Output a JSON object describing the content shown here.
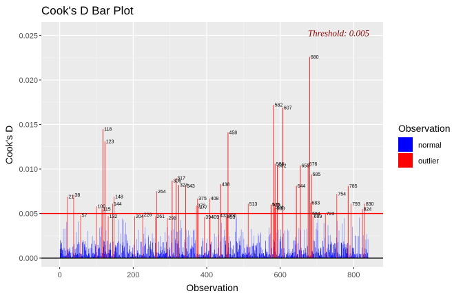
{
  "chart_data": {
    "type": "bar",
    "title": "Cook's D Bar Plot",
    "xlabel": "Observation",
    "ylabel": "Cook's D",
    "xlim": [
      -50,
      880
    ],
    "ylim": [
      -0.001,
      0.0265
    ],
    "x_ticks": [
      0,
      200,
      400,
      600,
      800
    ],
    "y_ticks": [
      0.0,
      0.005,
      0.01,
      0.015,
      0.02,
      0.025
    ],
    "y_tick_labels": [
      "0.000",
      "0.005",
      "0.010",
      "0.015",
      "0.020",
      "0.025"
    ],
    "threshold": 0.005,
    "threshold_label": "Threshold: 0.005",
    "grid": true,
    "legend_position": "right",
    "legend": {
      "title": "Observation",
      "entries": [
        {
          "label": "normal",
          "color": "#0000ff"
        },
        {
          "label": "outlier",
          "color": "#ff0000"
        }
      ]
    },
    "colors": {
      "normal": "#0000ff",
      "outlier": "#ff0000",
      "threshold": "#ff0000",
      "threshold_text": "#8b0000"
    },
    "outliers": [
      {
        "obs": 21,
        "d": 0.0069
      },
      {
        "obs": 38,
        "d": 0.0071
      },
      {
        "obs": 57,
        "d": 0.0048
      },
      {
        "obs": 100,
        "d": 0.0058
      },
      {
        "obs": 115,
        "d": 0.0055
      },
      {
        "obs": 118,
        "d": 0.0145
      },
      {
        "obs": 123,
        "d": 0.0131
      },
      {
        "obs": 132,
        "d": 0.0047
      },
      {
        "obs": 144,
        "d": 0.0061
      },
      {
        "obs": 148,
        "d": 0.0069
      },
      {
        "obs": 204,
        "d": 0.0047
      },
      {
        "obs": 226,
        "d": 0.0049
      },
      {
        "obs": 261,
        "d": 0.0047
      },
      {
        "obs": 264,
        "d": 0.0075
      },
      {
        "obs": 293,
        "d": 0.0045
      },
      {
        "obs": 306,
        "d": 0.0087
      },
      {
        "obs": 317,
        "d": 0.009
      },
      {
        "obs": 324,
        "d": 0.0082
      },
      {
        "obs": 343,
        "d": 0.0081
      },
      {
        "obs": 372,
        "d": 0.0059
      },
      {
        "obs": 375,
        "d": 0.0067
      },
      {
        "obs": 377,
        "d": 0.0057
      },
      {
        "obs": 394,
        "d": 0.0046
      },
      {
        "obs": 408,
        "d": 0.0067
      },
      {
        "obs": 409,
        "d": 0.0046
      },
      {
        "obs": 433,
        "d": 0.0048
      },
      {
        "obs": 438,
        "d": 0.0083
      },
      {
        "obs": 453,
        "d": 0.0046
      },
      {
        "obs": 456,
        "d": 0.0048
      },
      {
        "obs": 458,
        "d": 0.0141
      },
      {
        "obs": 513,
        "d": 0.0061
      },
      {
        "obs": 575,
        "d": 0.006
      },
      {
        "obs": 576,
        "d": 0.006
      },
      {
        "obs": 582,
        "d": 0.0172
      },
      {
        "obs": 584,
        "d": 0.0057
      },
      {
        "obs": 586,
        "d": 0.0106
      },
      {
        "obs": 588,
        "d": 0.0056
      },
      {
        "obs": 592,
        "d": 0.0104
      },
      {
        "obs": 607,
        "d": 0.0169
      },
      {
        "obs": 644,
        "d": 0.0081
      },
      {
        "obs": 655,
        "d": 0.0104
      },
      {
        "obs": 676,
        "d": 0.0106
      },
      {
        "obs": 680,
        "d": 0.0226
      },
      {
        "obs": 683,
        "d": 0.0062
      },
      {
        "obs": 684,
        "d": 0.005
      },
      {
        "obs": 685,
        "d": 0.0094
      },
      {
        "obs": 689,
        "d": 0.0047
      },
      {
        "obs": 723,
        "d": 0.005
      },
      {
        "obs": 754,
        "d": 0.0072
      },
      {
        "obs": 785,
        "d": 0.0081
      },
      {
        "obs": 793,
        "d": 0.0061
      },
      {
        "obs": 824,
        "d": 0.0055
      },
      {
        "obs": 830,
        "d": 0.0061
      }
    ]
  }
}
